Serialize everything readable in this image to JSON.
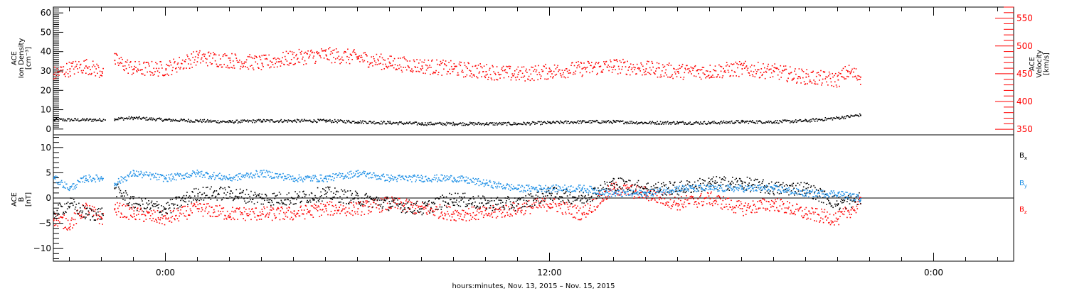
{
  "chart_data": [
    {
      "type": "scatter",
      "panel": "top",
      "ylabel_lines": [
        "ACE",
        "Ion Density",
        "[cm⁻³]"
      ],
      "y2label_lines": [
        "ACE",
        "Velocity",
        "[km/s]"
      ],
      "xlim_hours": [
        -3.5,
        26.5
      ],
      "ylim": [
        -3,
        63
      ],
      "yticks": [
        0,
        10,
        20,
        30,
        40,
        50,
        60
      ],
      "y2lim": [
        340,
        570
      ],
      "y2ticks": [
        350,
        400,
        450,
        500,
        550
      ],
      "grid": false,
      "series": [
        {
          "name": "",
          "axis": "left",
          "color": "#000000",
          "segments": [
            [
              -3.5,
              -1.95
            ],
            [
              -1.6,
              21.7
            ]
          ],
          "x": [
            -3.5,
            -2.5,
            -1.9,
            -1.6,
            -1,
            0,
            1,
            2,
            3,
            4,
            5,
            6,
            7,
            8,
            9,
            10,
            11,
            12,
            13,
            14,
            15,
            16,
            17,
            18,
            19,
            20,
            21,
            21.7
          ],
          "values": [
            5,
            5,
            5,
            5.5,
            6,
            5,
            4.5,
            4,
            4.5,
            4.5,
            4.5,
            4,
            3.5,
            3,
            3,
            3,
            3,
            3.5,
            4,
            4,
            3.5,
            3.5,
            3.5,
            4,
            4,
            4.5,
            6,
            7.5
          ]
        },
        {
          "name": "",
          "axis": "right",
          "color": "#ff0000",
          "segments": [
            [
              -3.5,
              -1.95
            ],
            [
              -1.6,
              21.7
            ]
          ],
          "x": [
            -3.5,
            -3,
            -2.5,
            -2,
            -1.6,
            -1,
            0,
            1,
            2,
            3,
            4,
            5,
            6,
            7,
            8,
            9,
            10,
            11,
            12,
            13,
            14,
            15,
            16,
            17,
            18,
            19,
            20,
            21,
            21.3,
            21.7
          ],
          "values": [
            450,
            460,
            465,
            455,
            475,
            460,
            460,
            480,
            475,
            470,
            480,
            485,
            480,
            470,
            465,
            460,
            455,
            450,
            455,
            460,
            465,
            460,
            455,
            455,
            460,
            455,
            445,
            440,
            455,
            445
          ]
        }
      ]
    },
    {
      "type": "scatter",
      "panel": "bottom",
      "ylabel_lines": [
        "ACE",
        "B",
        "[nT]"
      ],
      "xlabel": "hours:minutes, Nov. 13, 2015 – Nov. 15, 2015",
      "xticks_hours": [
        0,
        12,
        24
      ],
      "xtick_labels": [
        "0:00",
        "12:00",
        "0:00"
      ],
      "xlim_hours": [
        -3.5,
        26.5
      ],
      "ylim": [
        -12.5,
        12.5
      ],
      "yticks": [
        -10,
        -5,
        0,
        5,
        10
      ],
      "zero_line": true,
      "legend_position": "right",
      "series": [
        {
          "name": "Bx",
          "legend": {
            "base": "B",
            "sub": "x"
          },
          "color": "#000000",
          "segments": [
            [
              -3.5,
              -1.95
            ],
            [
              -1.6,
              21.7
            ]
          ],
          "x": [
            -3.5,
            -3,
            -2.5,
            -2,
            -1.6,
            -1,
            0,
            1,
            2,
            3,
            4,
            5,
            6,
            7,
            8,
            9,
            10,
            11,
            12,
            13,
            14,
            15,
            16,
            17,
            18,
            19,
            20,
            21,
            21.7
          ],
          "values": [
            -3,
            -1,
            -3,
            -3,
            2,
            -1,
            -2,
            1,
            1,
            0,
            0,
            1,
            0,
            -1,
            -2,
            0,
            -1,
            -1,
            1,
            0,
            3,
            2,
            2,
            3,
            3,
            2,
            2,
            -1,
            0
          ]
        },
        {
          "name": "By",
          "legend": {
            "base": "B",
            "sub": "y"
          },
          "color": "#1e90e6",
          "segments": [
            [
              -3.5,
              -1.95
            ],
            [
              -1.6,
              21.7
            ]
          ],
          "x": [
            -3.5,
            -3,
            -2.5,
            -2,
            -1.6,
            -1,
            0,
            1,
            2,
            3,
            4,
            5,
            6,
            7,
            8,
            9,
            10,
            11,
            12,
            13,
            14,
            15,
            16,
            17,
            18,
            19,
            20,
            21,
            21.7
          ],
          "values": [
            4,
            2,
            4,
            4,
            3,
            5,
            4,
            5,
            4,
            5,
            4,
            4,
            5,
            4,
            4,
            4,
            3,
            2,
            2,
            2,
            1,
            1,
            2,
            2,
            2,
            2,
            1,
            1,
            0
          ]
        },
        {
          "name": "Bz",
          "legend": {
            "base": "B",
            "sub": "z"
          },
          "color": "#ff0000",
          "segments": [
            [
              -3.5,
              -1.95
            ],
            [
              -1.6,
              21.7
            ]
          ],
          "x": [
            -3.5,
            -3,
            -2.5,
            -2,
            -1.6,
            -1,
            0,
            1,
            2,
            3,
            4,
            5,
            6,
            7,
            8,
            9,
            10,
            11,
            12,
            13,
            14,
            15,
            16,
            17,
            18,
            19,
            20,
            21,
            21.7
          ],
          "values": [
            -4,
            -5,
            -2,
            -4,
            -2,
            -3,
            -4,
            -2,
            -3,
            -3,
            -3,
            -2,
            -2,
            -1,
            -2,
            -3,
            -3,
            -2,
            -1,
            -3,
            2,
            1,
            -1,
            0,
            -2,
            -1,
            -3,
            -4,
            -1
          ]
        }
      ]
    }
  ]
}
